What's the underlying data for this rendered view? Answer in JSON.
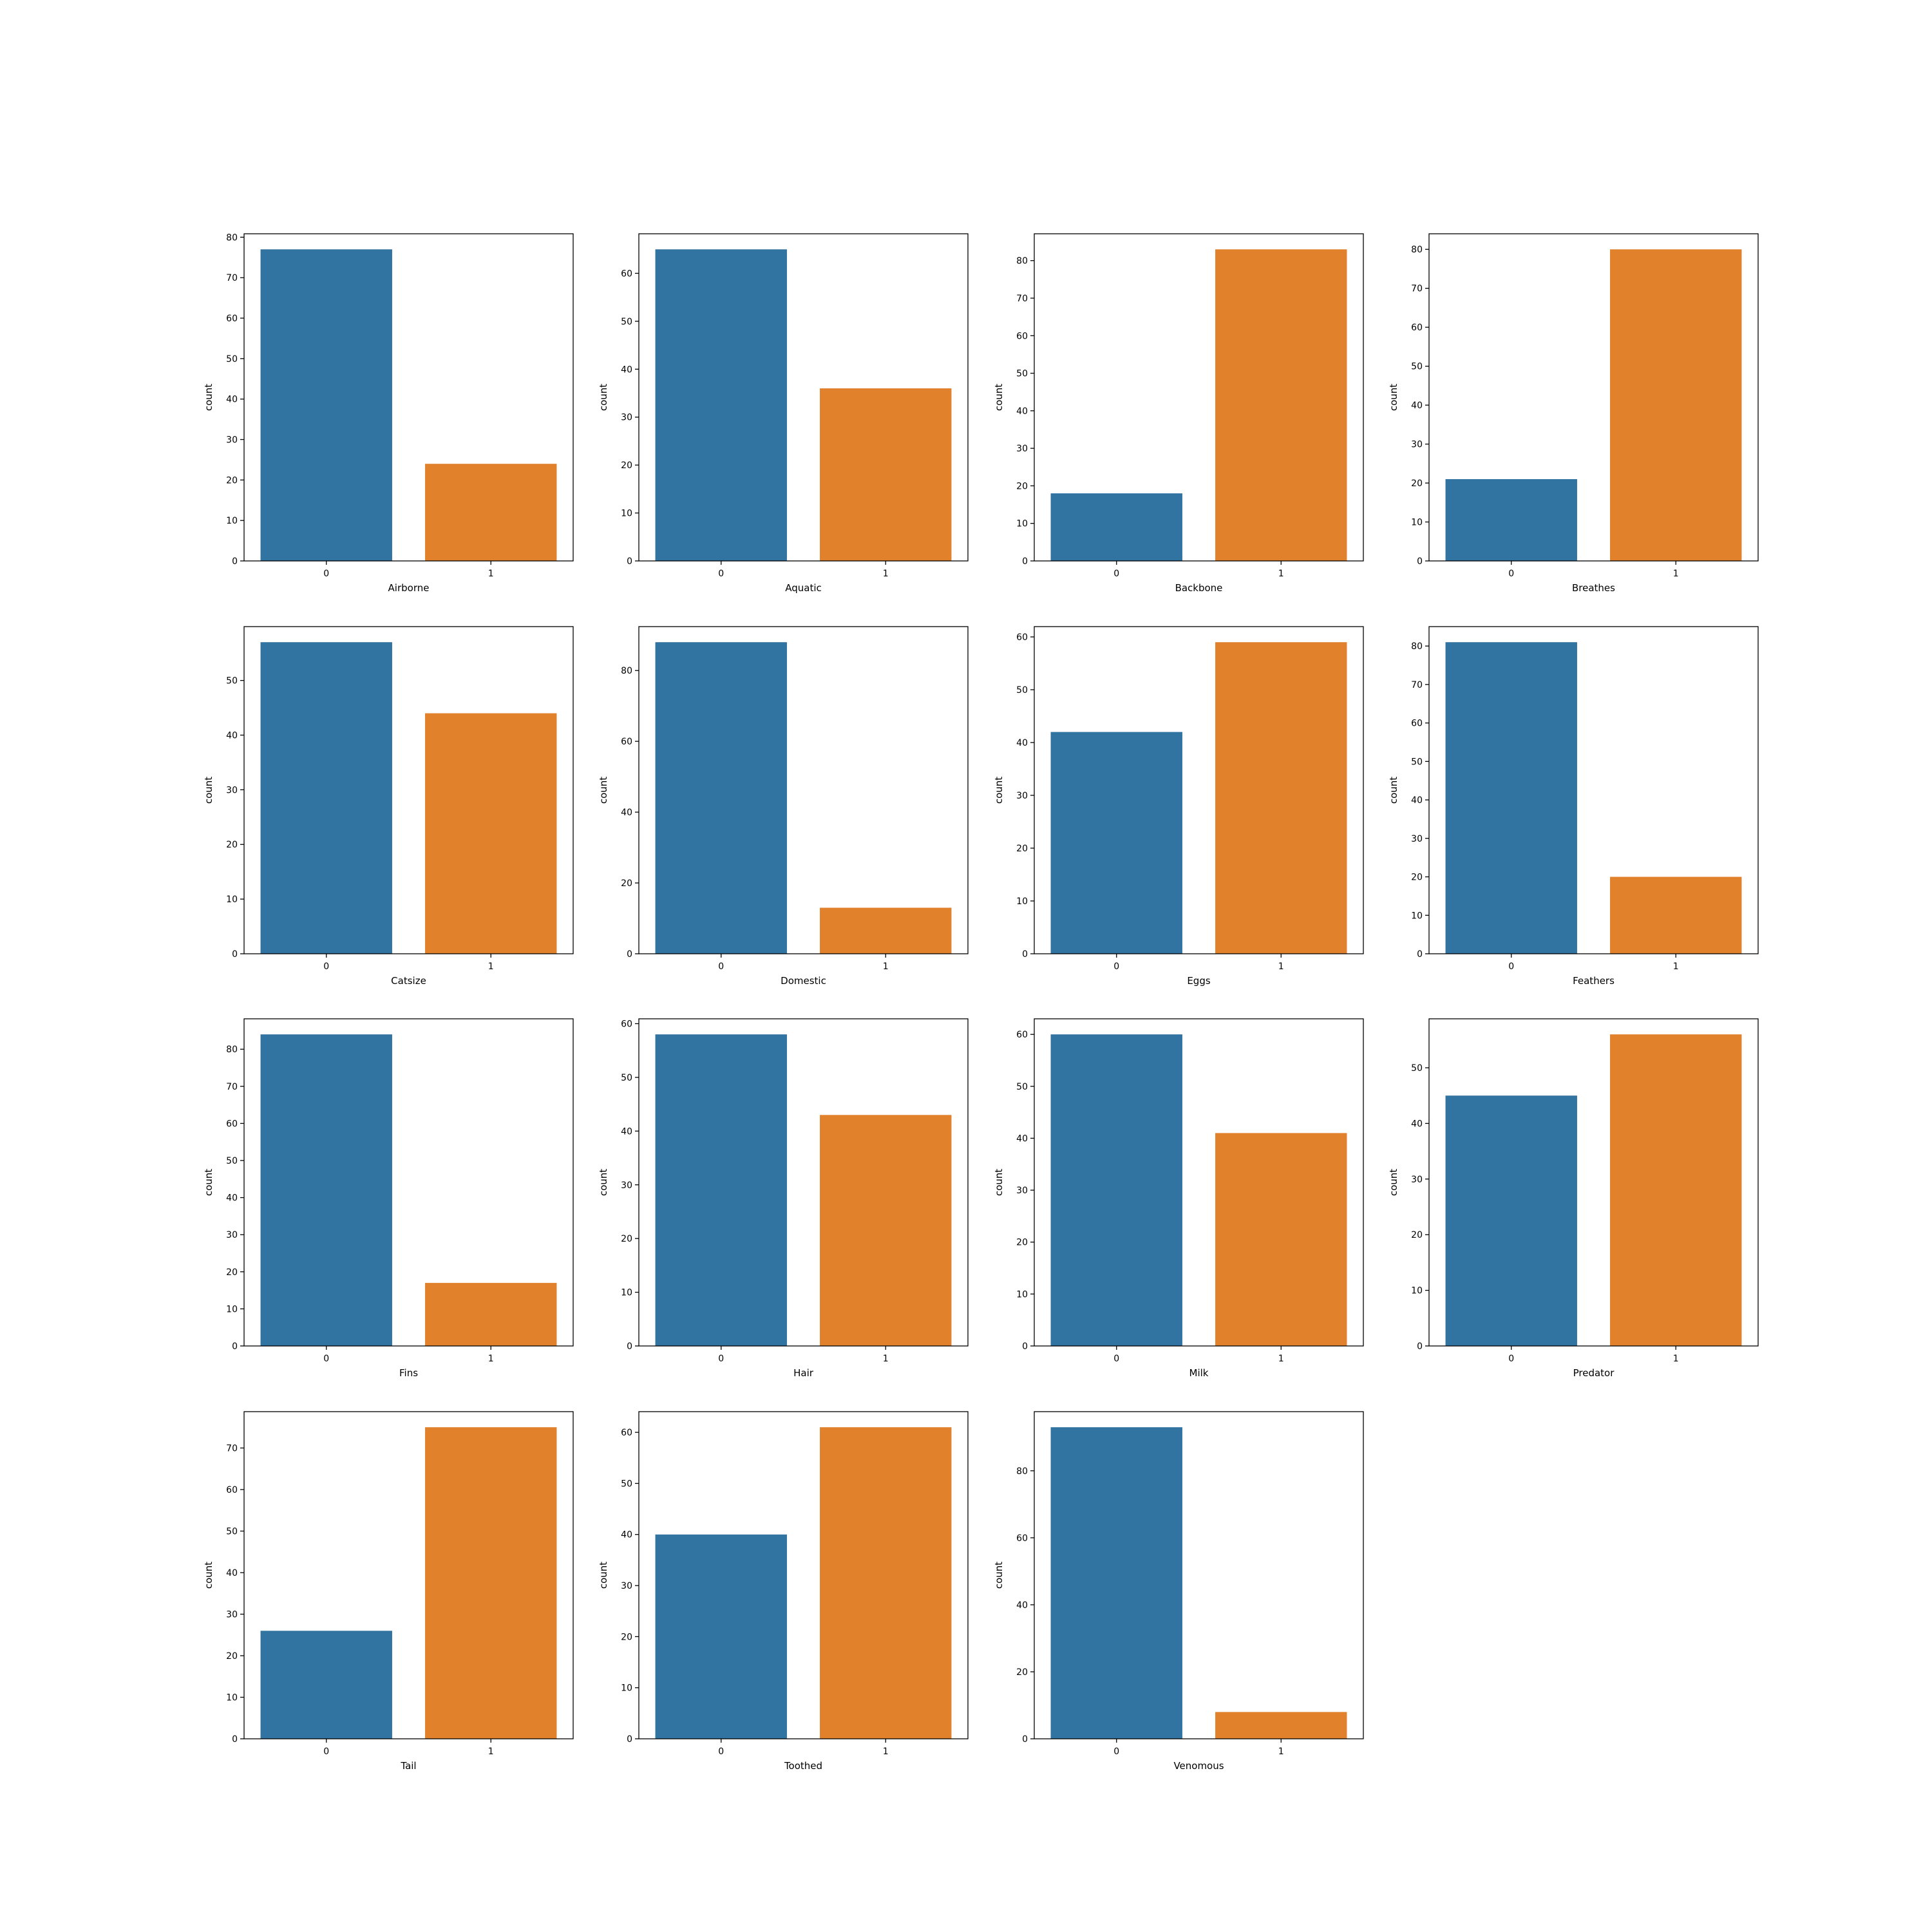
{
  "colors": {
    "category_0": "#3274a1",
    "category_1": "#e1812c",
    "axes": "#000000",
    "background": "#ffffff"
  },
  "chart_data": [
    {
      "type": "bar",
      "categories": [
        "0",
        "1"
      ],
      "values": [
        77,
        24
      ],
      "xlabel": "Airborne",
      "ylabel": "count",
      "ylim": [
        0,
        80.85
      ],
      "yticks": [
        "0",
        "10",
        "20",
        "30",
        "40",
        "50",
        "60",
        "70",
        "80"
      ],
      "grid": false
    },
    {
      "type": "bar",
      "categories": [
        "0",
        "1"
      ],
      "values": [
        65,
        36
      ],
      "xlabel": "Aquatic",
      "ylabel": "count",
      "ylim": [
        0,
        68.25
      ],
      "yticks": [
        "0",
        "10",
        "20",
        "30",
        "40",
        "50",
        "60"
      ],
      "grid": false
    },
    {
      "type": "bar",
      "categories": [
        "0",
        "1"
      ],
      "values": [
        18,
        83
      ],
      "xlabel": "Backbone",
      "ylabel": "count",
      "ylim": [
        0,
        87.15
      ],
      "yticks": [
        "0",
        "10",
        "20",
        "30",
        "40",
        "50",
        "60",
        "70",
        "80"
      ],
      "grid": false
    },
    {
      "type": "bar",
      "categories": [
        "0",
        "1"
      ],
      "values": [
        21,
        80
      ],
      "xlabel": "Breathes",
      "ylabel": "count",
      "ylim": [
        0,
        84
      ],
      "yticks": [
        "0",
        "10",
        "20",
        "30",
        "40",
        "50",
        "60",
        "70",
        "80"
      ],
      "grid": false
    },
    {
      "type": "bar",
      "categories": [
        "0",
        "1"
      ],
      "values": [
        57,
        44
      ],
      "xlabel": "Catsize",
      "ylabel": "count",
      "ylim": [
        0,
        59.85
      ],
      "yticks": [
        "0",
        "10",
        "20",
        "30",
        "40",
        "50"
      ],
      "grid": false
    },
    {
      "type": "bar",
      "categories": [
        "0",
        "1"
      ],
      "values": [
        88,
        13
      ],
      "xlabel": "Domestic",
      "ylabel": "count",
      "ylim": [
        0,
        92.4
      ],
      "yticks": [
        "0",
        "20",
        "40",
        "60",
        "80"
      ],
      "grid": false
    },
    {
      "type": "bar",
      "categories": [
        "0",
        "1"
      ],
      "values": [
        42,
        59
      ],
      "xlabel": "Eggs",
      "ylabel": "count",
      "ylim": [
        0,
        61.95
      ],
      "yticks": [
        "0",
        "10",
        "20",
        "30",
        "40",
        "50",
        "60"
      ],
      "grid": false
    },
    {
      "type": "bar",
      "categories": [
        "0",
        "1"
      ],
      "values": [
        81,
        20
      ],
      "xlabel": "Feathers",
      "ylabel": "count",
      "ylim": [
        0,
        85.05
      ],
      "yticks": [
        "0",
        "10",
        "20",
        "30",
        "40",
        "50",
        "60",
        "70",
        "80"
      ],
      "grid": false
    },
    {
      "type": "bar",
      "categories": [
        "0",
        "1"
      ],
      "values": [
        84,
        17
      ],
      "xlabel": "Fins",
      "ylabel": "count",
      "ylim": [
        0,
        88.2
      ],
      "yticks": [
        "0",
        "10",
        "20",
        "30",
        "40",
        "50",
        "60",
        "70",
        "80"
      ],
      "grid": false
    },
    {
      "type": "bar",
      "categories": [
        "0",
        "1"
      ],
      "values": [
        58,
        43
      ],
      "xlabel": "Hair",
      "ylabel": "count",
      "ylim": [
        0,
        60.9
      ],
      "yticks": [
        "0",
        "10",
        "20",
        "30",
        "40",
        "50",
        "60"
      ],
      "grid": false
    },
    {
      "type": "bar",
      "categories": [
        "0",
        "1"
      ],
      "values": [
        60,
        41
      ],
      "xlabel": "Milk",
      "ylabel": "count",
      "ylim": [
        0,
        63
      ],
      "yticks": [
        "0",
        "10",
        "20",
        "30",
        "40",
        "50",
        "60"
      ],
      "grid": false
    },
    {
      "type": "bar",
      "categories": [
        "0",
        "1"
      ],
      "values": [
        45,
        56
      ],
      "xlabel": "Predator",
      "ylabel": "count",
      "ylim": [
        0,
        58.8
      ],
      "yticks": [
        "0",
        "10",
        "20",
        "30",
        "40",
        "50"
      ],
      "grid": false
    },
    {
      "type": "bar",
      "categories": [
        "0",
        "1"
      ],
      "values": [
        26,
        75
      ],
      "xlabel": "Tail",
      "ylabel": "count",
      "ylim": [
        0,
        78.75
      ],
      "yticks": [
        "0",
        "10",
        "20",
        "30",
        "40",
        "50",
        "60",
        "70"
      ],
      "grid": false
    },
    {
      "type": "bar",
      "categories": [
        "0",
        "1"
      ],
      "values": [
        40,
        61
      ],
      "xlabel": "Toothed",
      "ylabel": "count",
      "ylim": [
        0,
        64.05
      ],
      "yticks": [
        "0",
        "10",
        "20",
        "30",
        "40",
        "50",
        "60"
      ],
      "grid": false
    },
    {
      "type": "bar",
      "categories": [
        "0",
        "1"
      ],
      "values": [
        93,
        8
      ],
      "xlabel": "Venomous",
      "ylabel": "count",
      "ylim": [
        0,
        97.65
      ],
      "yticks": [
        "0",
        "20",
        "40",
        "60",
        "80"
      ],
      "grid": false
    }
  ]
}
